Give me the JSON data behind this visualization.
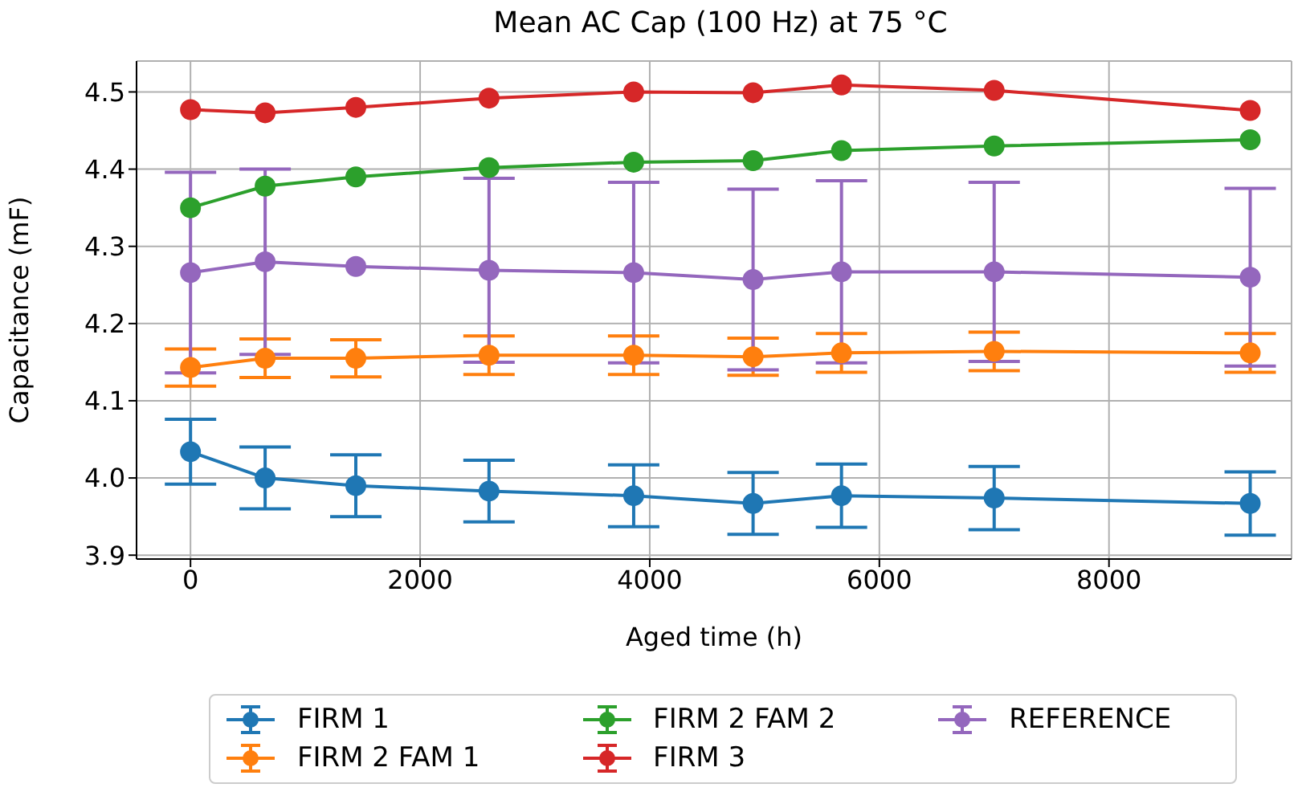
{
  "chart_data": {
    "type": "line",
    "title": "Mean AC Cap (100 Hz) at 75 °C",
    "xlabel": "Aged time (h)",
    "ylabel": "Capacitance (mF)",
    "x": [
      0,
      650,
      1440,
      2600,
      3860,
      4900,
      5670,
      7000,
      9230
    ],
    "series": [
      {
        "name": "FIRM 1",
        "color": "#1f77b4",
        "values": [
          4.034,
          4.0,
          3.99,
          3.983,
          3.977,
          3.967,
          3.977,
          3.974,
          3.967
        ],
        "errors": [
          0.042,
          0.04,
          0.04,
          0.04,
          0.04,
          0.04,
          0.041,
          0.041,
          0.041
        ]
      },
      {
        "name": "FIRM 2 FAM 1",
        "color": "#ff7f0e",
        "values": [
          4.143,
          4.155,
          4.155,
          4.159,
          4.159,
          4.157,
          4.162,
          4.164,
          4.162
        ],
        "errors": [
          0.024,
          0.025,
          0.024,
          0.025,
          0.025,
          0.024,
          0.025,
          0.025,
          0.025
        ]
      },
      {
        "name": "FIRM 2 FAM 2",
        "color": "#2ca02c",
        "values": [
          4.35,
          4.378,
          4.39,
          4.402,
          4.409,
          4.411,
          4.424,
          4.43,
          4.438
        ]
      },
      {
        "name": "FIRM 3",
        "color": "#d62728",
        "values": [
          4.477,
          4.473,
          4.48,
          4.492,
          4.5,
          4.499,
          4.509,
          4.502,
          4.476
        ]
      },
      {
        "name": "REFERENCE",
        "color": "#9467bd",
        "values": [
          4.266,
          4.28,
          4.274,
          4.269,
          4.266,
          4.257,
          4.267,
          4.267,
          4.26
        ],
        "errors": [
          0.13,
          0.12,
          null,
          0.119,
          0.117,
          0.117,
          0.118,
          0.116,
          0.115
        ]
      }
    ],
    "xlim": [
      -470,
      9590
    ],
    "xticks": [
      0,
      2000,
      4000,
      6000,
      8000
    ],
    "ylim": [
      3.895,
      4.54
    ],
    "yticks": [
      3.9,
      {
        "value": 4.0,
        "label": "4.0"
      },
      4.1,
      4.2,
      4.3,
      4.4,
      4.5
    ],
    "grid": true,
    "legend": "bottom",
    "marker": "circle",
    "line_style": "solid"
  }
}
